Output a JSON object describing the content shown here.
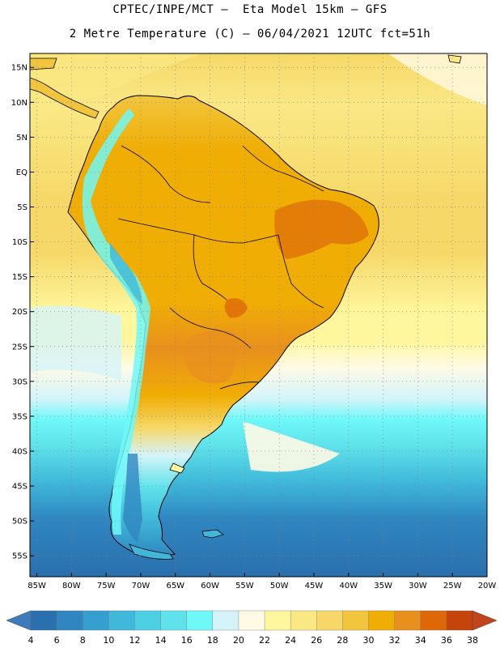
{
  "header": {
    "line1": "CPTEC/INPE/MCT –  Eta Model 15km – GFS",
    "line2": "2 Metre Temperature (C) – 06/04/2021 12UTC fct=51h"
  },
  "map": {
    "lon_range": [
      -86,
      -20
    ],
    "lat_range": [
      -58,
      17
    ],
    "lat_ticks": [
      {
        "value": 15,
        "label": "15N"
      },
      {
        "value": 10,
        "label": "10N"
      },
      {
        "value": 5,
        "label": "5N"
      },
      {
        "value": 0,
        "label": "EQ"
      },
      {
        "value": -5,
        "label": "5S"
      },
      {
        "value": -10,
        "label": "10S"
      },
      {
        "value": -15,
        "label": "15S"
      },
      {
        "value": -20,
        "label": "20S"
      },
      {
        "value": -25,
        "label": "25S"
      },
      {
        "value": -30,
        "label": "30S"
      },
      {
        "value": -35,
        "label": "35S"
      },
      {
        "value": -40,
        "label": "40S"
      },
      {
        "value": -45,
        "label": "45S"
      },
      {
        "value": -50,
        "label": "50S"
      },
      {
        "value": -55,
        "label": "55S"
      }
    ],
    "lon_ticks": [
      {
        "value": -85,
        "label": "85W"
      },
      {
        "value": -80,
        "label": "80W"
      },
      {
        "value": -75,
        "label": "75W"
      },
      {
        "value": -70,
        "label": "70W"
      },
      {
        "value": -65,
        "label": "65W"
      },
      {
        "value": -60,
        "label": "60W"
      },
      {
        "value": -55,
        "label": "55W"
      },
      {
        "value": -50,
        "label": "50W"
      },
      {
        "value": -45,
        "label": "45W"
      },
      {
        "value": -40,
        "label": "40W"
      },
      {
        "value": -35,
        "label": "35W"
      },
      {
        "value": -30,
        "label": "30W"
      },
      {
        "value": -25,
        "label": "25W"
      },
      {
        "value": -20,
        "label": "20W"
      }
    ]
  },
  "colorbar": {
    "labels": [
      "4",
      "6",
      "8",
      "10",
      "12",
      "14",
      "16",
      "18",
      "20",
      "22",
      "24",
      "26",
      "28",
      "30",
      "32",
      "34",
      "36",
      "38"
    ],
    "colors": [
      "#2a6fae",
      "#2f86c0",
      "#35a0cf",
      "#3fb8da",
      "#4ed0e4",
      "#5fe2ea",
      "#6ef8f8",
      "#d4f4fa",
      "#fffae6",
      "#fff79e",
      "#fae885",
      "#f6d868",
      "#f1c63e",
      "#f0ad04",
      "#e8901e",
      "#de6808",
      "#c44409"
    ],
    "low_color": "#3d7bbd",
    "high_color": "#c0441c"
  }
}
